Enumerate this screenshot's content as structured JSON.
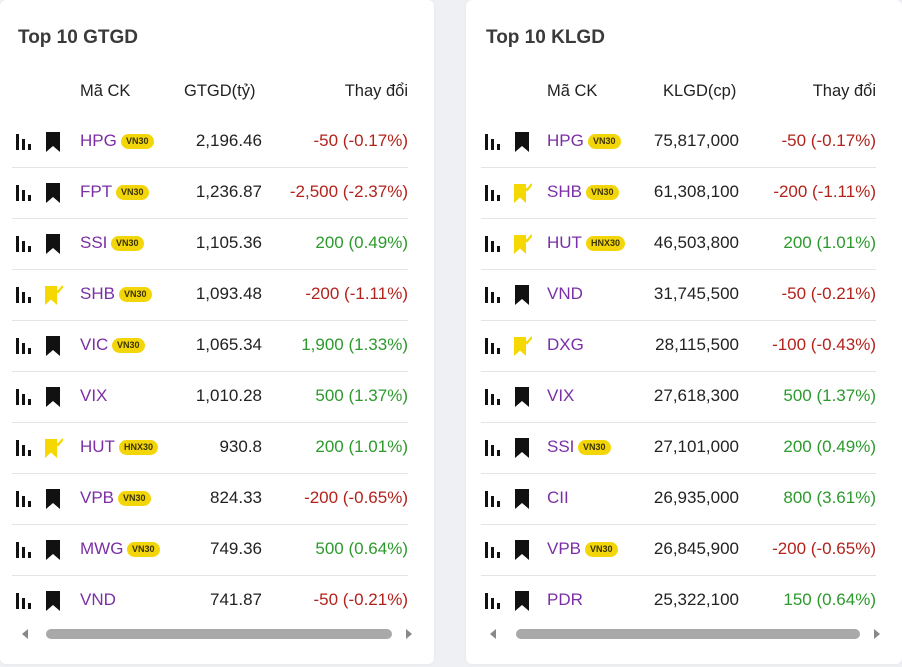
{
  "left_table": {
    "title": "Top 10 GTGD",
    "headers": {
      "symbol": "Mã CK",
      "value": "GTGD(tỷ)",
      "change": "Thay đổi"
    },
    "rows": [
      {
        "symbol": "HPG",
        "badge": "VN30",
        "value": "2,196.46",
        "change": "-50 (-0.17%)",
        "direction": "down",
        "bookmarked": false
      },
      {
        "symbol": "FPT",
        "badge": "VN30",
        "value": "1,236.87",
        "change": "-2,500 (-2.37%)",
        "direction": "down",
        "bookmarked": false
      },
      {
        "symbol": "SSI",
        "badge": "VN30",
        "value": "1,105.36",
        "change": "200 (0.49%)",
        "direction": "up",
        "bookmarked": false
      },
      {
        "symbol": "SHB",
        "badge": "VN30",
        "value": "1,093.48",
        "change": "-200 (-1.11%)",
        "direction": "down",
        "bookmarked": true
      },
      {
        "symbol": "VIC",
        "badge": "VN30",
        "value": "1,065.34",
        "change": "1,900 (1.33%)",
        "direction": "up",
        "bookmarked": false
      },
      {
        "symbol": "VIX",
        "badge": "",
        "value": "1,010.28",
        "change": "500 (1.37%)",
        "direction": "up",
        "bookmarked": false
      },
      {
        "symbol": "HUT",
        "badge": "HNX30",
        "value": "930.8",
        "change": "200 (1.01%)",
        "direction": "up",
        "bookmarked": true
      },
      {
        "symbol": "VPB",
        "badge": "VN30",
        "value": "824.33",
        "change": "-200 (-0.65%)",
        "direction": "down",
        "bookmarked": false
      },
      {
        "symbol": "MWG",
        "badge": "VN30",
        "value": "749.36",
        "change": "500 (0.64%)",
        "direction": "up",
        "bookmarked": false
      },
      {
        "symbol": "VND",
        "badge": "",
        "value": "741.87",
        "change": "-50 (-0.21%)",
        "direction": "down",
        "bookmarked": false
      }
    ]
  },
  "right_table": {
    "title": "Top 10 KLGD",
    "headers": {
      "symbol": "Mã CK",
      "value": "KLGD(cp)",
      "change": "Thay đổi"
    },
    "rows": [
      {
        "symbol": "HPG",
        "badge": "VN30",
        "value": "75,817,000",
        "change": "-50 (-0.17%)",
        "direction": "down",
        "bookmarked": false
      },
      {
        "symbol": "SHB",
        "badge": "VN30",
        "value": "61,308,100",
        "change": "-200 (-1.11%)",
        "direction": "down",
        "bookmarked": true
      },
      {
        "symbol": "HUT",
        "badge": "HNX30",
        "value": "46,503,800",
        "change": "200 (1.01%)",
        "direction": "up",
        "bookmarked": true
      },
      {
        "symbol": "VND",
        "badge": "",
        "value": "31,745,500",
        "change": "-50 (-0.21%)",
        "direction": "down",
        "bookmarked": false
      },
      {
        "symbol": "DXG",
        "badge": "",
        "value": "28,115,500",
        "change": "-100 (-0.43%)",
        "direction": "down",
        "bookmarked": true
      },
      {
        "symbol": "VIX",
        "badge": "",
        "value": "27,618,300",
        "change": "500 (1.37%)",
        "direction": "up",
        "bookmarked": false
      },
      {
        "symbol": "SSI",
        "badge": "VN30",
        "value": "27,101,000",
        "change": "200 (0.49%)",
        "direction": "up",
        "bookmarked": false
      },
      {
        "symbol": "CII",
        "badge": "",
        "value": "26,935,000",
        "change": "800 (3.61%)",
        "direction": "up",
        "bookmarked": false
      },
      {
        "symbol": "VPB",
        "badge": "VN30",
        "value": "26,845,900",
        "change": "-200 (-0.65%)",
        "direction": "down",
        "bookmarked": false
      },
      {
        "symbol": "PDR",
        "badge": "",
        "value": "25,322,100",
        "change": "150 (0.64%)",
        "direction": "up",
        "bookmarked": false
      }
    ]
  },
  "icons": {
    "chart": "bar-chart-icon",
    "bookmark": "bookmark-icon",
    "bookmark_added": "bookmark-check-icon"
  },
  "colors": {
    "up": "#2c9a2c",
    "down": "#b3221b",
    "symbol": "#7b2fa6",
    "badge": "#f3d60a",
    "bookmark_added": "#f5d800"
  }
}
